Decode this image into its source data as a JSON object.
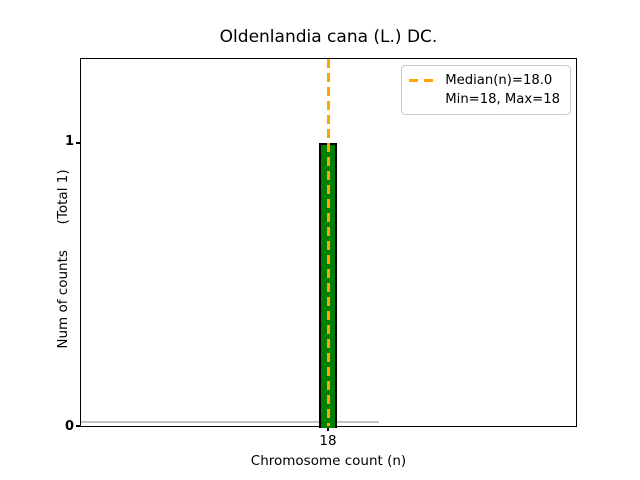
{
  "chart_data": {
    "type": "bar",
    "title": "Oldenlandia cana (L.) DC.",
    "xlabel": "Chromosome count (n)",
    "ylabel": "Num of counts      (Total 1)",
    "categories": [
      "18"
    ],
    "values": [
      1
    ],
    "series": [
      {
        "name": "chromosome-count-frequency",
        "x": [
          18
        ],
        "counts": [
          1
        ],
        "bar_color": "#008000",
        "bar_edge_color": "#000000"
      }
    ],
    "stats": {
      "median": 18.0,
      "min": 18,
      "max": 18,
      "total_counts": 1
    },
    "median_line": {
      "x": 18.0,
      "color": "#FFA500",
      "linestyle": "dashed"
    },
    "xticks": [
      "18"
    ],
    "yticks": [
      "0",
      "1"
    ],
    "ylim": [
      0,
      1.3
    ],
    "grid": false,
    "background_color": "#ffffff",
    "legend": {
      "position": "upper right",
      "items": [
        {
          "label": "Median(n)=18.0",
          "swatch": "orange-dashed-line"
        },
        {
          "label": "Min=18, Max=18",
          "swatch": "none"
        }
      ]
    }
  }
}
